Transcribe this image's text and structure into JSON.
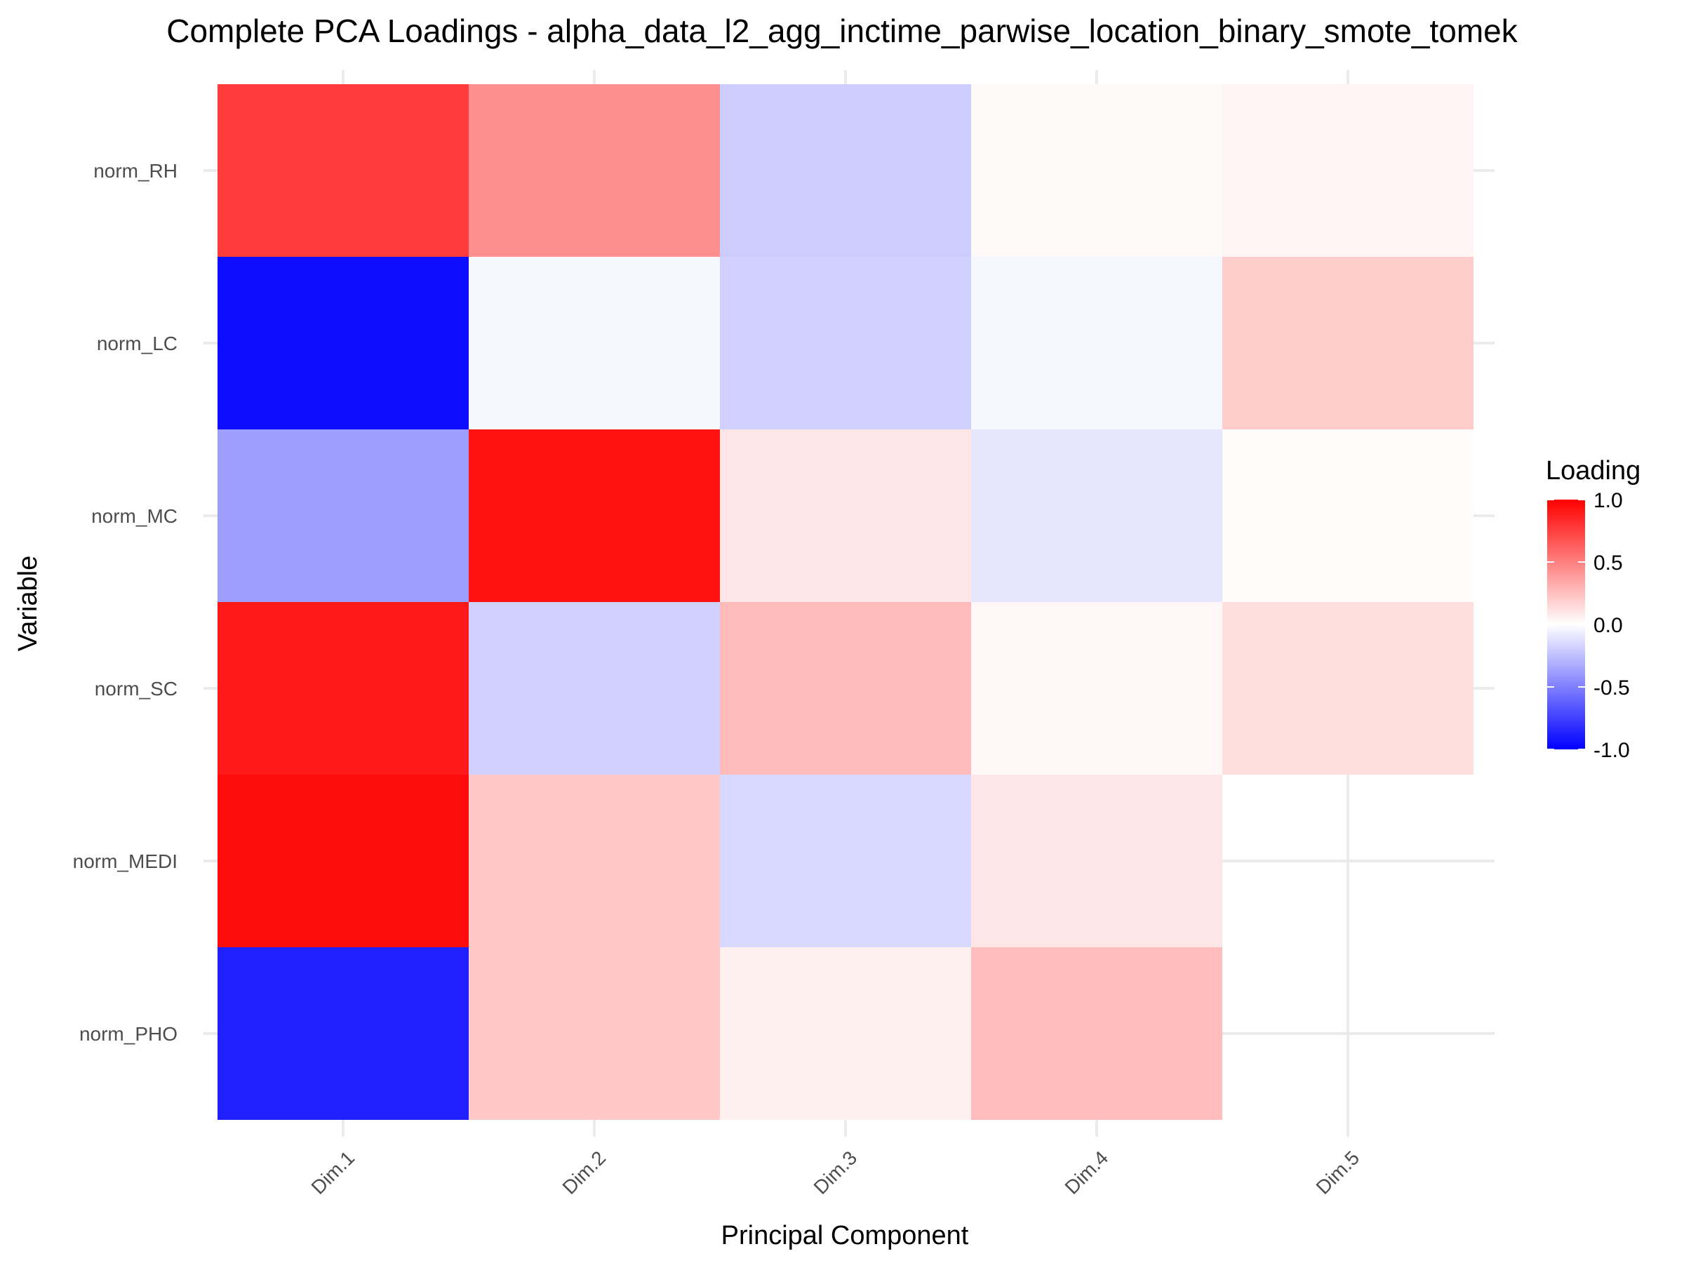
{
  "chart_data": {
    "type": "heatmap",
    "title": "Complete PCA Loadings - alpha_data_l2_agg_inctime_parwise_location_binary_smote_tomek",
    "xlabel": "Principal Component",
    "ylabel": "Variable",
    "x_categories": [
      "Dim.1",
      "Dim.2",
      "Dim.3",
      "Dim.4",
      "Dim.5"
    ],
    "y_categories": [
      "norm_RH",
      "norm_LC",
      "norm_MC",
      "norm_SC",
      "norm_MEDI",
      "norm_PHO"
    ],
    "values": [
      [
        0.77,
        0.44,
        -0.2,
        0.02,
        0.04
      ],
      [
        -0.95,
        -0.03,
        -0.18,
        -0.03,
        0.2
      ],
      [
        -0.38,
        0.93,
        0.1,
        -0.1,
        0.01
      ],
      [
        0.9,
        -0.18,
        0.27,
        0.03,
        0.13
      ],
      [
        0.95,
        0.21,
        -0.15,
        0.1,
        null
      ],
      [
        -0.88,
        0.21,
        0.06,
        0.26,
        null
      ]
    ],
    "color_scale": {
      "low": "#0000ff",
      "mid": "#ffffff",
      "high": "#ff0000",
      "range": [
        -1,
        1
      ]
    },
    "legend": {
      "title": "Loading",
      "ticks": [
        "1.0",
        "0.5",
        "0.0",
        "-0.5",
        "-1.0"
      ],
      "tick_values": [
        1,
        0.5,
        0,
        -0.5,
        -1
      ],
      "placement": "right"
    },
    "grid": true
  }
}
